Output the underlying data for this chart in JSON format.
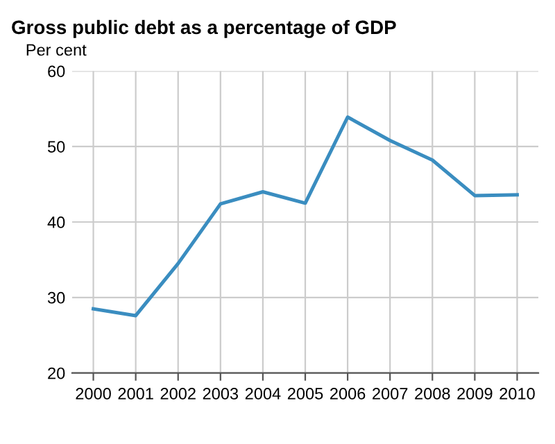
{
  "chart_data": {
    "type": "line",
    "title": "Gross public debt as a percentage of GDP",
    "ylabel": "Per cent",
    "categories": [
      "2000",
      "2001",
      "2002",
      "2003",
      "2004",
      "2005",
      "2006",
      "2007",
      "2008",
      "2009",
      "2010"
    ],
    "series": [
      {
        "color": "#3a8dc0",
        "values": [
          28.5,
          27.6,
          34.5,
          42.4,
          44.0,
          42.5,
          53.9,
          50.8,
          48.2,
          43.5,
          43.6
        ]
      }
    ],
    "ylim": [
      20,
      60
    ],
    "yticks": [
      20,
      30,
      40,
      50,
      60
    ],
    "grid": true,
    "legend": false,
    "marker": "none",
    "line_style": "solid"
  }
}
